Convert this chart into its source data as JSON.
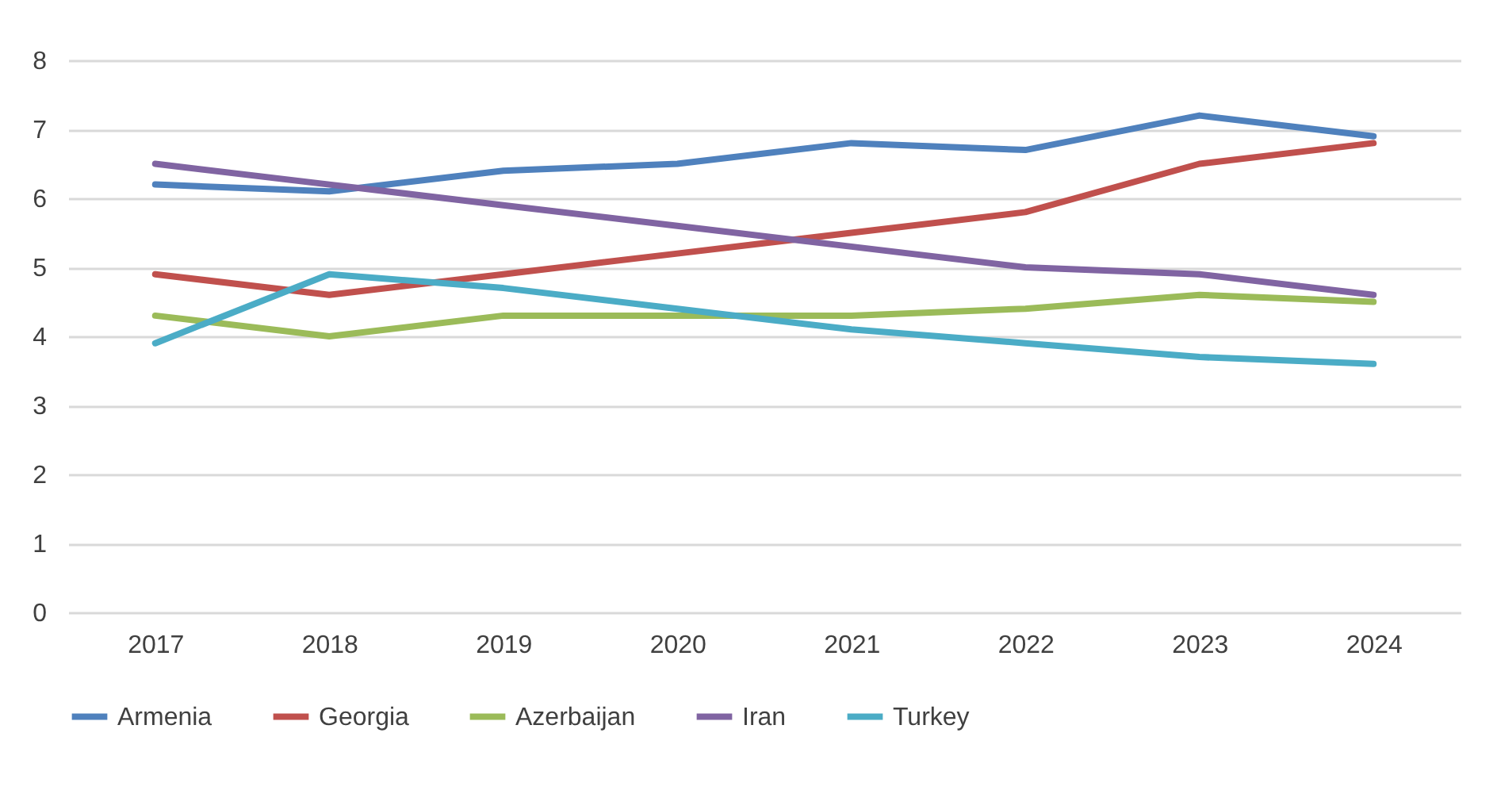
{
  "chart_data": {
    "type": "line",
    "categories": [
      "2017",
      "2018",
      "2019",
      "2020",
      "2021",
      "2022",
      "2023",
      "2024"
    ],
    "series": [
      {
        "name": "Armenia",
        "color": "#4f81bd",
        "values": [
          6.2,
          6.1,
          6.4,
          6.5,
          6.8,
          6.7,
          7.2,
          6.9
        ]
      },
      {
        "name": "Georgia",
        "color": "#c0504d",
        "values": [
          4.9,
          4.6,
          4.9,
          5.2,
          5.5,
          5.8,
          6.5,
          6.8
        ]
      },
      {
        "name": "Azerbaijan",
        "color": "#9bbb59",
        "values": [
          4.3,
          4.0,
          4.3,
          4.3,
          4.3,
          4.4,
          4.6,
          4.5
        ]
      },
      {
        "name": "Iran",
        "color": "#8064a2",
        "values": [
          6.5,
          6.2,
          5.9,
          5.6,
          5.3,
          5.0,
          4.9,
          4.6
        ]
      },
      {
        "name": "Turkey",
        "color": "#4bacc6",
        "values": [
          3.9,
          4.9,
          4.7,
          4.4,
          4.1,
          3.9,
          3.7,
          3.6
        ]
      }
    ],
    "ylim": [
      0,
      8
    ],
    "yticks": [
      0,
      1,
      2,
      3,
      4,
      5,
      6,
      7,
      8
    ],
    "grid": "y",
    "legend": "bottom",
    "marker": "none",
    "line_style": "solid"
  }
}
